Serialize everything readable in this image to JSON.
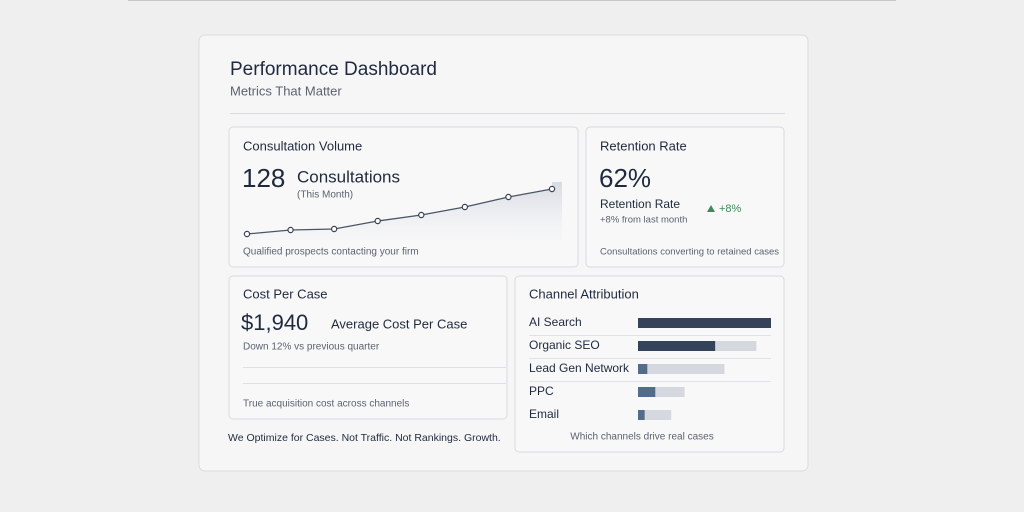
{
  "header": {
    "title": "Performance Dashboard",
    "subtitle": "Metrics That Matter"
  },
  "consultations": {
    "title": "Consultation Volume",
    "value": "128",
    "unit": "Consultations",
    "period": "(This Month)",
    "caption": "Qualified prospects contacting your firm",
    "sparkline": {
      "values": [
        6,
        10,
        11,
        19,
        25,
        33,
        43,
        51
      ]
    }
  },
  "retention": {
    "title": "Retention Rate",
    "value": "62%",
    "label": "Retention Rate",
    "note": "+8% from last month",
    "change": "+8%",
    "caption": "Consultations converting to retained cases"
  },
  "cost": {
    "title": "Cost Per Case",
    "value": "$1,940",
    "label": "Average Cost Per Case",
    "note": "Down 12% vs previous quarter",
    "caption": "True acquisition cost across channels"
  },
  "channels": {
    "title": "Channel Attribution",
    "caption": "Which channels drive real cases",
    "rows": [
      {
        "label": "AI Search",
        "value": 100,
        "max": 100
      },
      {
        "label": "Organic SEO",
        "value": 58,
        "max": 89
      },
      {
        "label": "Lead Gen Network",
        "value": 7,
        "max": 65
      },
      {
        "label": "PPC",
        "value": 13,
        "max": 35
      },
      {
        "label": "Email",
        "value": 5,
        "max": 25
      }
    ]
  },
  "footer": {
    "tagline": "We Optimize for Cases. Not Traffic. Not Rankings. Growth."
  }
}
